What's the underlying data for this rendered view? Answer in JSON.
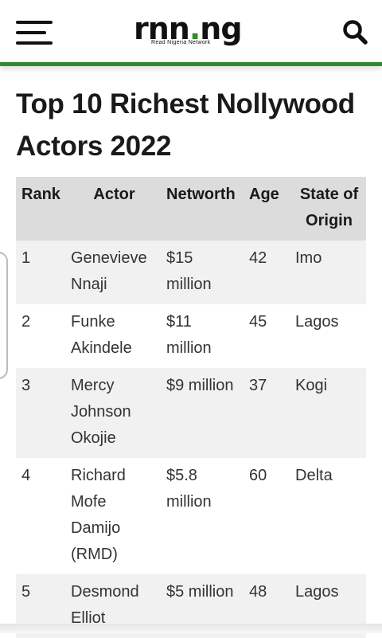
{
  "header": {
    "logo_text": "rnn",
    "logo_dot": ".",
    "logo_suffix": "ng",
    "logo_tagline": "Read Nigeria Network",
    "menu_icon": "hamburger-menu-icon",
    "search_icon": "search-icon",
    "accent_color": "#2e8b2e"
  },
  "article": {
    "title": "Top 10 Richest Nollywood Actors 2022"
  },
  "table": {
    "headers": {
      "rank": "Rank",
      "actor": "Actor",
      "networth": "Networth",
      "age": "Age",
      "state": "State of Origin"
    },
    "rows": [
      {
        "rank": "1",
        "actor": "Genevieve Nnaji",
        "networth": "$15 million",
        "age": "42",
        "state": "Imo"
      },
      {
        "rank": "2",
        "actor": "Funke Akindele",
        "networth": "$11 million",
        "age": "45",
        "state": "Lagos"
      },
      {
        "rank": "3",
        "actor": "Mercy Johnson Okojie",
        "networth": "$9 million",
        "age": "37",
        "state": "Kogi"
      },
      {
        "rank": "4",
        "actor": "Richard Mofe Damijo (RMD)",
        "networth": "$5.8 million",
        "age": "60",
        "state": "Delta"
      },
      {
        "rank": "5",
        "actor": "Desmond Elliot",
        "networth": "$5 million",
        "age": "48",
        "state": "Lagos"
      }
    ]
  }
}
